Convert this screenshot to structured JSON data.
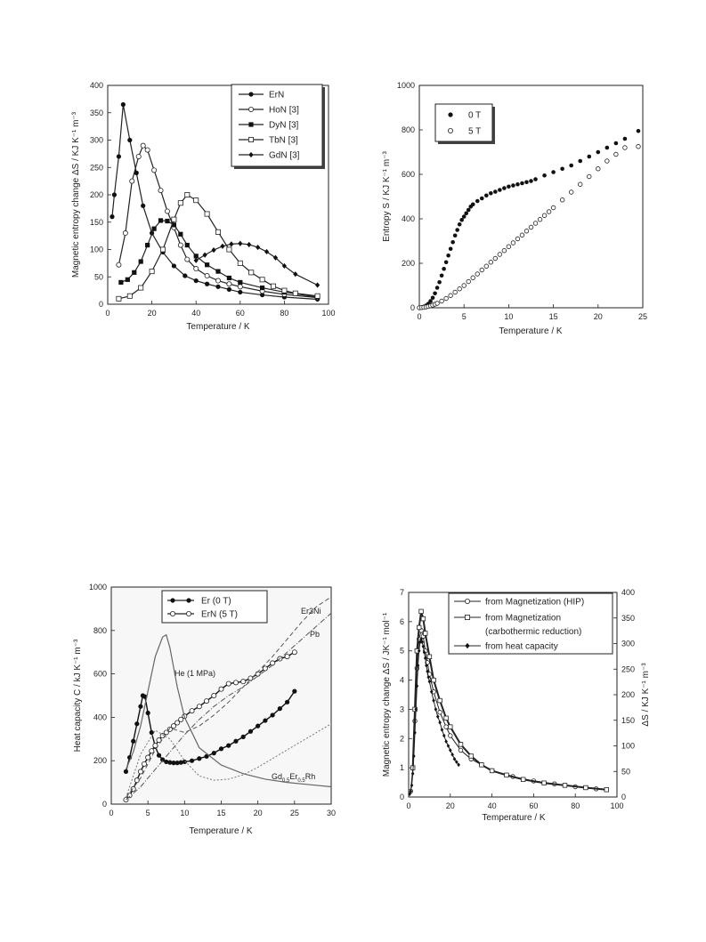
{
  "chart_data": [
    {
      "type": "line",
      "xlabel": "Temperature / K",
      "ylabel": "Magnetic entropy change ΔS / KJ K⁻¹ m⁻³",
      "xlim": [
        0,
        100
      ],
      "ylim": [
        0,
        400
      ],
      "xticks": [
        "0",
        "20",
        "40",
        "60",
        "80",
        "100"
      ],
      "yticks": [
        "0",
        "50",
        "100",
        "150",
        "200",
        "250",
        "300",
        "350",
        "400"
      ],
      "legend_position": "top-right",
      "series": [
        {
          "name": "ErN",
          "marker": "filled-circle",
          "x": [
            2,
            3,
            5,
            7,
            10,
            13,
            16,
            20,
            25,
            30,
            35,
            40,
            45,
            50,
            55,
            60,
            70,
            80,
            95
          ],
          "y": [
            160,
            200,
            270,
            365,
            300,
            240,
            180,
            130,
            95,
            70,
            52,
            43,
            37,
            32,
            27,
            22,
            17,
            13,
            9
          ]
        },
        {
          "name": "HoN [3]",
          "marker": "open-circle",
          "x": [
            5,
            8,
            11,
            14,
            16,
            18,
            21,
            24,
            27,
            30,
            33,
            36,
            40,
            45,
            50,
            55,
            60,
            70,
            80,
            95
          ],
          "y": [
            72,
            130,
            225,
            270,
            290,
            282,
            245,
            208,
            170,
            140,
            108,
            82,
            65,
            52,
            43,
            37,
            32,
            24,
            18,
            12
          ]
        },
        {
          "name": "DyN [3]",
          "marker": "filled-square",
          "x": [
            6,
            9,
            12,
            15,
            18,
            21,
            24,
            27,
            30,
            33,
            36,
            40,
            45,
            50,
            55,
            60,
            70,
            80,
            95
          ],
          "y": [
            40,
            45,
            58,
            78,
            108,
            138,
            153,
            152,
            145,
            128,
            108,
            88,
            72,
            60,
            48,
            40,
            30,
            22,
            13
          ]
        },
        {
          "name": "TbN [3]",
          "marker": "open-square",
          "x": [
            5,
            10,
            15,
            20,
            25,
            30,
            33,
            36,
            40,
            45,
            50,
            55,
            60,
            65,
            70,
            75,
            80,
            85,
            95
          ],
          "y": [
            10,
            15,
            30,
            60,
            100,
            155,
            185,
            200,
            190,
            165,
            132,
            100,
            75,
            58,
            45,
            33,
            25,
            20,
            15
          ]
        },
        {
          "name": "GdN [3]",
          "marker": "filled-diamond",
          "x": [
            40,
            44,
            48,
            52,
            56,
            60,
            64,
            68,
            72,
            76,
            80,
            85,
            95
          ],
          "y": [
            80,
            90,
            99,
            106,
            110,
            111,
            109,
            104,
            96,
            85,
            70,
            55,
            35
          ]
        }
      ]
    },
    {
      "type": "scatter",
      "xlabel": "Temperature / K",
      "ylabel": "Entropy S / KJ K⁻¹ m⁻³",
      "xlim": [
        0,
        25
      ],
      "ylim": [
        0,
        1000
      ],
      "xticks": [
        "0",
        "5",
        "10",
        "15",
        "20",
        "25"
      ],
      "yticks": [
        "0",
        "200",
        "400",
        "600",
        "800",
        "1000"
      ],
      "legend_position": "top-left",
      "series": [
        {
          "name": "0 T",
          "marker": "filled-circle",
          "x": [
            0,
            0.25,
            0.5,
            0.75,
            1,
            1.25,
            1.5,
            1.75,
            2,
            2.25,
            2.5,
            2.75,
            3,
            3.25,
            3.5,
            3.75,
            4,
            4.25,
            4.5,
            4.75,
            5,
            5.25,
            5.5,
            5.75,
            6,
            6.5,
            7,
            7.5,
            8,
            8.5,
            9,
            9.5,
            10,
            10.5,
            11,
            11.5,
            12,
            12.5,
            13,
            14,
            15,
            16,
            17,
            18,
            19,
            20,
            21,
            22,
            23,
            24.5
          ],
          "y": [
            0,
            2,
            5,
            10,
            18,
            30,
            45,
            65,
            90,
            115,
            145,
            175,
            205,
            235,
            265,
            295,
            325,
            350,
            375,
            395,
            410,
            425,
            440,
            455,
            465,
            480,
            492,
            505,
            515,
            522,
            530,
            538,
            545,
            550,
            555,
            560,
            565,
            570,
            578,
            595,
            610,
            625,
            640,
            660,
            680,
            700,
            720,
            740,
            760,
            795
          ]
        },
        {
          "name": "5 T",
          "marker": "open-circle",
          "x": [
            0,
            0.25,
            0.5,
            0.75,
            1,
            1.25,
            1.5,
            1.75,
            2,
            2.5,
            3,
            3.5,
            4,
            4.5,
            5,
            5.5,
            6,
            6.5,
            7,
            7.5,
            8,
            8.5,
            9,
            9.5,
            10,
            10.5,
            11,
            11.5,
            12,
            12.5,
            13,
            13.5,
            14,
            14.5,
            15,
            16,
            17,
            18,
            19,
            20,
            21,
            22,
            23,
            24.5
          ],
          "y": [
            0,
            1,
            2,
            4,
            6,
            9,
            12,
            16,
            20,
            30,
            42,
            55,
            70,
            85,
            100,
            118,
            135,
            152,
            170,
            187,
            205,
            222,
            240,
            257,
            275,
            292,
            310,
            327,
            345,
            362,
            380,
            397,
            415,
            432,
            450,
            485,
            520,
            555,
            590,
            625,
            660,
            690,
            720,
            725
          ]
        }
      ]
    },
    {
      "type": "line",
      "xlabel": "Temperature / K",
      "ylabel": "Heat capacity C / kJ K⁻¹ m⁻³",
      "xlim": [
        0,
        30
      ],
      "ylim": [
        0,
        1000
      ],
      "xticks": [
        "0",
        "5",
        "10",
        "15",
        "20",
        "25",
        "30"
      ],
      "yticks": [
        "0",
        "200",
        "400",
        "600",
        "800",
        "1000"
      ],
      "legend_position": "top-center",
      "annotations": [
        "Er3Ni",
        "Pb",
        "He (1 MPa)",
        "Gd",
        "0.5",
        "Er",
        "0.5",
        "Rh"
      ],
      "series": [
        {
          "name": "Er (0 T)",
          "marker": "filled-circle",
          "x": [
            2,
            2.5,
            3,
            3.5,
            4,
            4.3,
            4.6,
            5,
            5.5,
            6,
            6.5,
            7,
            7.5,
            8,
            8.5,
            9,
            9.5,
            10,
            11,
            12,
            13,
            14,
            15,
            16,
            17,
            18,
            19,
            20,
            21,
            22,
            23,
            24,
            25
          ],
          "y": [
            150,
            215,
            290,
            370,
            450,
            500,
            495,
            420,
            330,
            265,
            225,
            205,
            195,
            192,
            190,
            190,
            192,
            195,
            200,
            210,
            220,
            235,
            255,
            270,
            290,
            310,
            335,
            360,
            385,
            410,
            440,
            470,
            520
          ]
        },
        {
          "name": "ErN (5 T)",
          "marker": "open-circle",
          "x": [
            2,
            2.5,
            3,
            3.5,
            4,
            4.5,
            5,
            5.5,
            6,
            6.5,
            7,
            7.5,
            8,
            8.5,
            9,
            9.5,
            10,
            11,
            12,
            13,
            14,
            15,
            16,
            17,
            18,
            19,
            20,
            21,
            22,
            23,
            24,
            25
          ],
          "y": [
            20,
            40,
            70,
            110,
            150,
            185,
            215,
            245,
            270,
            295,
            315,
            330,
            345,
            360,
            375,
            390,
            405,
            430,
            450,
            475,
            500,
            530,
            555,
            560,
            565,
            580,
            600,
            625,
            650,
            670,
            680,
            700
          ]
        },
        {
          "name": "He (1 MPa)",
          "x": [
            2,
            3,
            4,
            5,
            6,
            7,
            7.5,
            8,
            9,
            10,
            12,
            15,
            18,
            21,
            24,
            27,
            30
          ],
          "y": [
            160,
            240,
            360,
            520,
            680,
            770,
            780,
            720,
            540,
            400,
            260,
            180,
            140,
            115,
            100,
            90,
            80
          ]
        },
        {
          "name": "Er3Ni",
          "x": [
            2,
            4,
            6,
            8,
            10,
            12,
            14,
            16,
            18,
            20,
            22,
            24,
            26,
            28,
            30
          ],
          "y": [
            30,
            120,
            250,
            350,
            330,
            360,
            410,
            470,
            540,
            610,
            680,
            760,
            840,
            910,
            955
          ]
        },
        {
          "name": "Pb",
          "x": [
            2,
            4,
            6,
            8,
            10,
            12,
            14,
            16,
            18,
            20,
            22,
            24,
            26,
            28,
            30
          ],
          "y": [
            20,
            80,
            160,
            240,
            320,
            390,
            450,
            500,
            540,
            590,
            640,
            700,
            760,
            820,
            880
          ]
        },
        {
          "name": "Gd0.5Er0.5Rh",
          "x": [
            2,
            4,
            6,
            8,
            10,
            12,
            14,
            16,
            18,
            20,
            22,
            24,
            26,
            28,
            30
          ],
          "y": [
            30,
            230,
            340,
            300,
            200,
            130,
            110,
            115,
            135,
            170,
            210,
            250,
            290,
            330,
            370
          ]
        }
      ]
    },
    {
      "type": "line",
      "xlabel": "Temperature / K",
      "ylabel": "Magnetic entropy change ΔS / JK⁻¹ mol⁻¹",
      "ylabel_right": "ΔS / KJ K⁻¹ m⁻³",
      "xlim": [
        0,
        100
      ],
      "ylim": [
        0,
        7
      ],
      "ylim_right": [
        0,
        400
      ],
      "xticks": [
        "0",
        "20",
        "40",
        "60",
        "80",
        "100"
      ],
      "yticks": [
        "0",
        "1",
        "2",
        "3",
        "4",
        "5",
        "6",
        "7"
      ],
      "yticks_right": [
        "0",
        "50",
        "100",
        "150",
        "200",
        "250",
        "300",
        "350",
        "400"
      ],
      "legend_position": "top-right",
      "series": [
        {
          "name": "from Magnetization (HIP)",
          "marker": "open-circle",
          "x": [
            1,
            2,
            3,
            4,
            5,
            6,
            7,
            8,
            9,
            10,
            12,
            15,
            18,
            20,
            25,
            30,
            35,
            40,
            50,
            60,
            70,
            80,
            90
          ],
          "y": [
            0.2,
            1.0,
            2.6,
            4.4,
            5.4,
            5.7,
            5.5,
            5.0,
            4.6,
            4.2,
            3.6,
            2.9,
            2.4,
            2.1,
            1.6,
            1.3,
            1.1,
            0.9,
            0.7,
            0.55,
            0.45,
            0.35,
            0.28
          ]
        },
        {
          "name": "from Magnetization",
          "marker": "open-square",
          "x": [
            2,
            3,
            4,
            5,
            6,
            7,
            8,
            10,
            12,
            15,
            18,
            20,
            25,
            30,
            35,
            40,
            47,
            55,
            65,
            75,
            85,
            95
          ],
          "y": [
            1.0,
            3.0,
            5.0,
            5.8,
            6.35,
            6.1,
            5.6,
            4.8,
            4.0,
            3.3,
            2.7,
            2.4,
            1.8,
            1.4,
            1.1,
            0.9,
            0.75,
            0.6,
            0.48,
            0.4,
            0.32,
            0.25
          ]
        },
        {
          "name": "from heat capacity",
          "marker": "filled-diamond",
          "x": [
            0.5,
            1,
            1.5,
            2,
            2.5,
            3,
            3.5,
            4,
            4.5,
            5,
            5.5,
            6,
            6.5,
            7,
            7.5,
            8,
            8.5,
            9,
            9.5,
            10,
            11,
            12,
            13,
            14,
            15,
            16,
            17,
            18,
            19,
            20,
            21,
            22,
            23,
            24
          ],
          "y": [
            0.1,
            0.2,
            0.4,
            0.8,
            1.4,
            2.2,
            3.0,
            3.8,
            4.5,
            5.0,
            5.3,
            5.4,
            5.3,
            5.15,
            4.95,
            4.75,
            4.5,
            4.3,
            4.1,
            3.95,
            3.6,
            3.3,
            3.0,
            2.75,
            2.55,
            2.3,
            2.1,
            1.9,
            1.75,
            1.6,
            1.45,
            1.3,
            1.2,
            1.1
          ]
        }
      ],
      "legend_extra": "(carbothermic reduction)"
    }
  ]
}
